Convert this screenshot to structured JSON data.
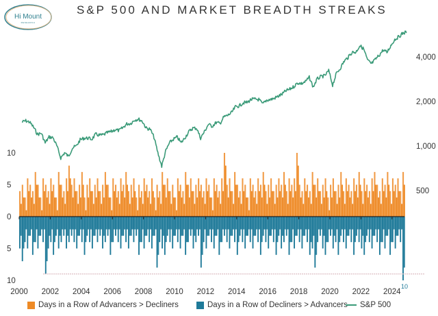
{
  "header": {
    "title": "S&P 500 AND MARKET BREADTH STREAKS",
    "logo_text": "Hi Mount",
    "logo_sub": "RESEARCH"
  },
  "colors": {
    "advancers": "#EE8A26",
    "decliners": "#1F7A99",
    "sp500": "#3A9A78",
    "reference": "#D9B8BE"
  },
  "chart_data": {
    "type": "bar+line",
    "title": "S&P 500 AND MARKET BREADTH STREAKS",
    "x_ticks": [
      "2000",
      "2002",
      "2004",
      "2006",
      "2008",
      "2010",
      "2012",
      "2014",
      "2016",
      "2018",
      "2020",
      "2022",
      "2024"
    ],
    "xlim": [
      2000,
      2024.8
    ],
    "left_axis": {
      "ticks": [
        "10",
        "5",
        "0",
        "5",
        "10"
      ],
      "range": [
        -10,
        10
      ],
      "note_label": "10"
    },
    "right_axis": {
      "scale": "log",
      "ticks": [
        "500",
        "1,000",
        "2,000",
        "4,000"
      ],
      "values": [
        500,
        1000,
        2000,
        4000
      ]
    },
    "reference_line": {
      "value": -9,
      "style": "dashed"
    },
    "legend": {
      "placement": "bottom",
      "items": [
        "Days in a Row of Advancers > Decliners",
        "Days in a Row of Decliners > Advancers",
        "S&P 500"
      ]
    },
    "bar_period_start": 2000,
    "bar_period_step_years": 0.1667,
    "series": [
      {
        "name": "Days in a Row of Advancers > Decliners",
        "type": "bar",
        "values": [
          4,
          5,
          3,
          6,
          5,
          4,
          7,
          5,
          3,
          6,
          5,
          4,
          6,
          5,
          3,
          7,
          5,
          4,
          6,
          8,
          5,
          6,
          4,
          5,
          7,
          3,
          5,
          6,
          4,
          5,
          6,
          4,
          5,
          7,
          5,
          3,
          6,
          5,
          4,
          6,
          5,
          7,
          4,
          5,
          6,
          3,
          5,
          4,
          6,
          5,
          4,
          6,
          3,
          5,
          4,
          7,
          5,
          6,
          4,
          5,
          3,
          6,
          5,
          4,
          7,
          5,
          6,
          4,
          5,
          6,
          5,
          4,
          6,
          5,
          3,
          6,
          5,
          4,
          6,
          10,
          5,
          6,
          4,
          7,
          5,
          4,
          6,
          5,
          3,
          6,
          5,
          4,
          6,
          5,
          7,
          4,
          5,
          6,
          4,
          5,
          6,
          5,
          7,
          4,
          6,
          5,
          6,
          10,
          5,
          4,
          6,
          5,
          4,
          7,
          5,
          6,
          4,
          5,
          6,
          3,
          5,
          6,
          4,
          5,
          7,
          4,
          6,
          5,
          4,
          6,
          5,
          7,
          4,
          6,
          5,
          4,
          6,
          7,
          5,
          4,
          6,
          5,
          7,
          4,
          6,
          5,
          6,
          4,
          7
        ]
      },
      {
        "name": "Days in a Row of Decliners > Advancers",
        "type": "bar",
        "values": [
          5,
          7,
          4,
          5,
          3,
          6,
          4,
          5,
          3,
          4,
          9,
          5,
          4,
          6,
          3,
          5,
          4,
          3,
          5,
          4,
          3,
          4,
          5,
          3,
          4,
          6,
          3,
          4,
          5,
          3,
          4,
          3,
          5,
          4,
          3,
          6,
          4,
          3,
          4,
          5,
          3,
          4,
          5,
          3,
          4,
          3,
          6,
          4,
          5,
          3,
          4,
          5,
          3,
          8,
          4,
          5,
          6,
          3,
          4,
          5,
          3,
          4,
          5,
          3,
          6,
          4,
          3,
          5,
          4,
          3,
          8,
          4,
          5,
          3,
          4,
          5,
          3,
          6,
          4,
          3,
          4,
          5,
          3,
          4,
          6,
          3,
          4,
          5,
          3,
          4,
          5,
          3,
          4,
          6,
          3,
          4,
          5,
          3,
          4,
          6,
          3,
          5,
          4,
          3,
          6,
          4,
          5,
          3,
          4,
          5,
          3,
          4,
          6,
          5,
          8,
          4,
          3,
          5,
          6,
          4,
          3,
          5,
          4,
          6,
          3,
          4,
          5,
          3,
          4,
          6,
          3,
          4,
          5,
          6,
          3,
          4,
          5,
          3,
          4,
          6,
          4,
          5,
          3,
          6,
          4,
          5,
          3,
          4,
          10
        ]
      },
      {
        "name": "S&P 500",
        "type": "line",
        "x_start": 2000,
        "x_step": 0.25,
        "values": [
          1450,
          1480,
          1450,
          1340,
          1200,
          1220,
          1050,
          1150,
          1140,
          1000,
          830,
          900,
          850,
          970,
          1000,
          1100,
          1130,
          1130,
          1110,
          1200,
          1180,
          1190,
          1230,
          1250,
          1290,
          1270,
          1330,
          1410,
          1420,
          1500,
          1520,
          1470,
          1320,
          1300,
          1150,
          900,
          730,
          920,
          1050,
          1110,
          1150,
          1050,
          1140,
          1250,
          1320,
          1320,
          1130,
          1250,
          1400,
          1360,
          1440,
          1420,
          1570,
          1610,
          1680,
          1840,
          1870,
          1960,
          1970,
          2060,
          2070,
          2060,
          1920,
          2040,
          2060,
          2100,
          2170,
          2240,
          2360,
          2420,
          2520,
          2670,
          2640,
          2720,
          2910,
          2500,
          2830,
          2940,
          2980,
          3230,
          2580,
          3100,
          3360,
          3750,
          3970,
          4300,
          4300,
          4770,
          4530,
          3790,
          3590,
          3840,
          4110,
          4450,
          4290,
          4770,
          5250,
          5460,
          5760,
          5900
        ]
      }
    ]
  }
}
